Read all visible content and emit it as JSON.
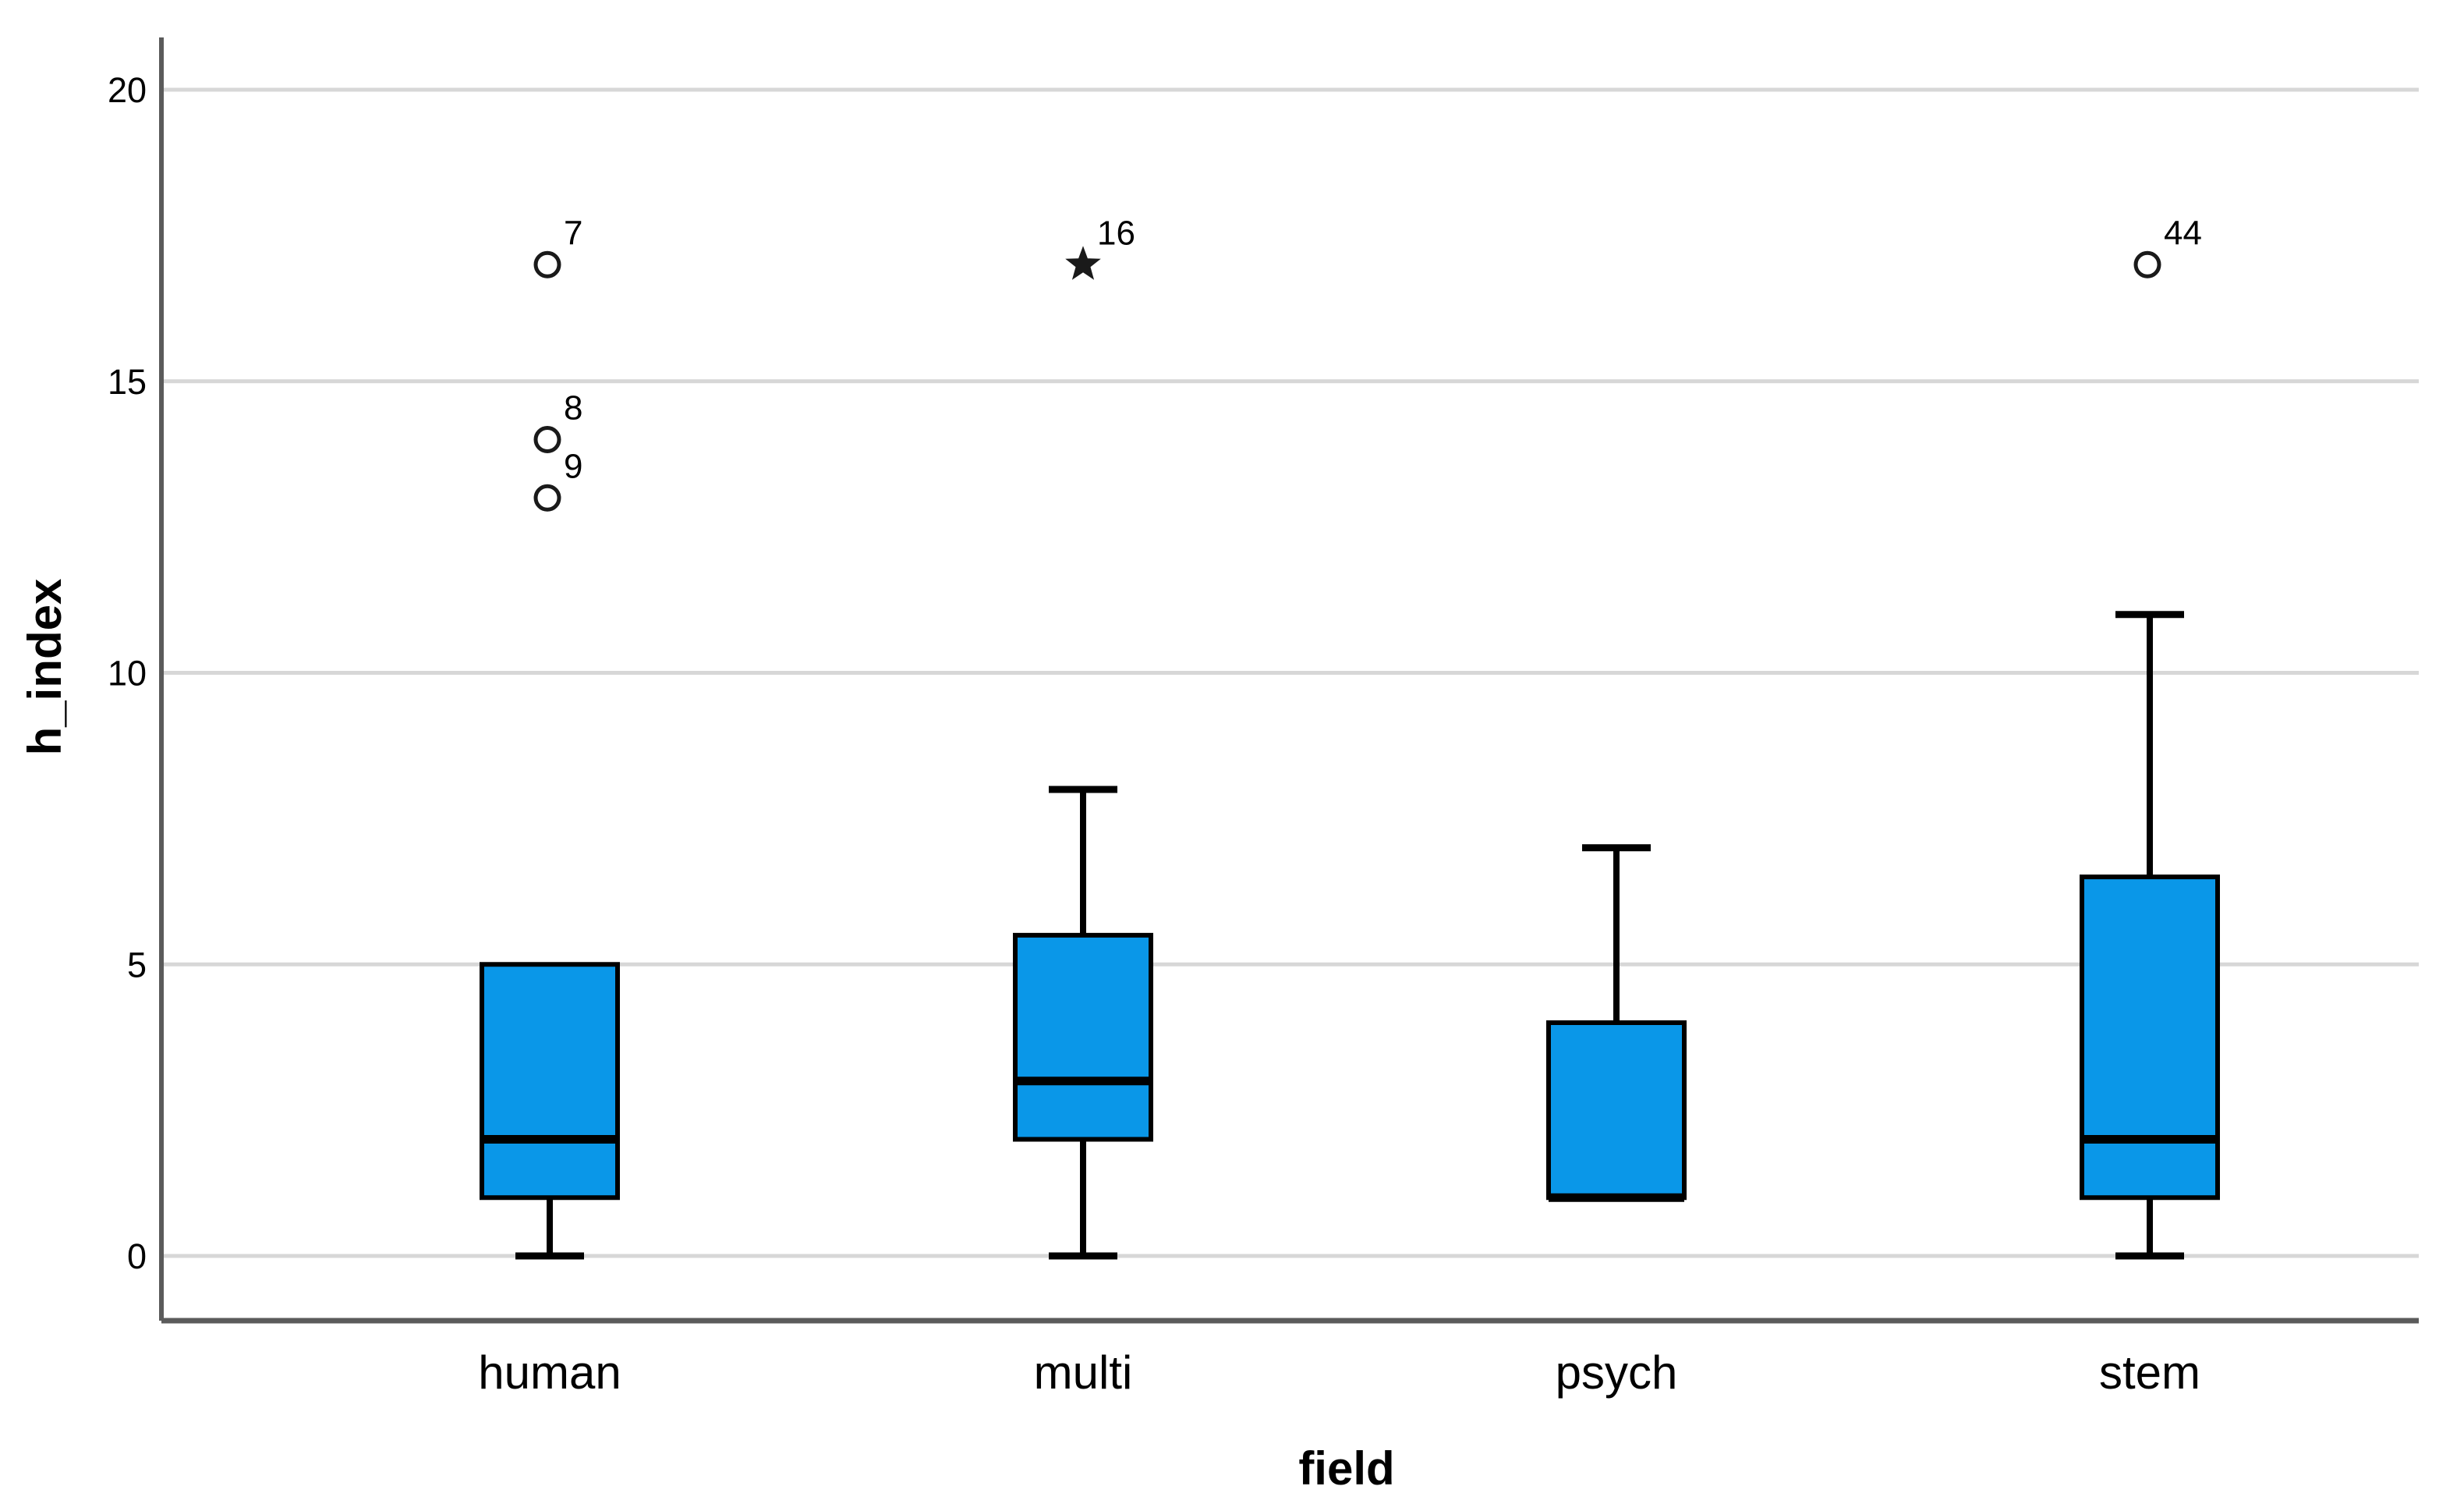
{
  "chart_data": {
    "type": "boxplot",
    "title": "",
    "xlabel": "field",
    "ylabel": "h_index",
    "categories": [
      "human",
      "multi",
      "psych",
      "stem"
    ],
    "yticks": [
      0,
      5,
      10,
      15,
      20
    ],
    "ylim": [
      0,
      20
    ],
    "grid": "horizontal",
    "legend": "none",
    "boxes": [
      {
        "category": "human",
        "whisker_low": 0,
        "q1": 1,
        "median": 2,
        "q3": 5,
        "whisker_high": 5,
        "outliers": [
          {
            "value": 17,
            "label": "7",
            "marker": "circle"
          },
          {
            "value": 14,
            "label": "8",
            "marker": "circle"
          },
          {
            "value": 13,
            "label": "9",
            "marker": "circle"
          }
        ]
      },
      {
        "category": "multi",
        "whisker_low": 0,
        "q1": 2,
        "median": 3,
        "q3": 5.5,
        "whisker_high": 8,
        "outliers": [
          {
            "value": 17,
            "label": "16",
            "marker": "star"
          }
        ]
      },
      {
        "category": "psych",
        "whisker_low": 1,
        "q1": 1,
        "median": 1,
        "q3": 4,
        "whisker_high": 7,
        "outliers": []
      },
      {
        "category": "stem",
        "whisker_low": 0,
        "q1": 1,
        "median": 2,
        "q3": 6.5,
        "whisker_high": 11,
        "outliers": [
          {
            "value": 17,
            "label": "44",
            "marker": "circle"
          }
        ]
      }
    ],
    "colors": {
      "box_fill": "#0A97E8",
      "box_stroke": "#000000",
      "median": "#000000",
      "whisker": "#000000",
      "outlier_stroke": "#1A1A1A",
      "outlier_fill": "#FFFFFF",
      "grid": "#D7D7D7",
      "axis": "#5B5B5B",
      "text": "#000000",
      "background": "#FFFFFF"
    }
  }
}
